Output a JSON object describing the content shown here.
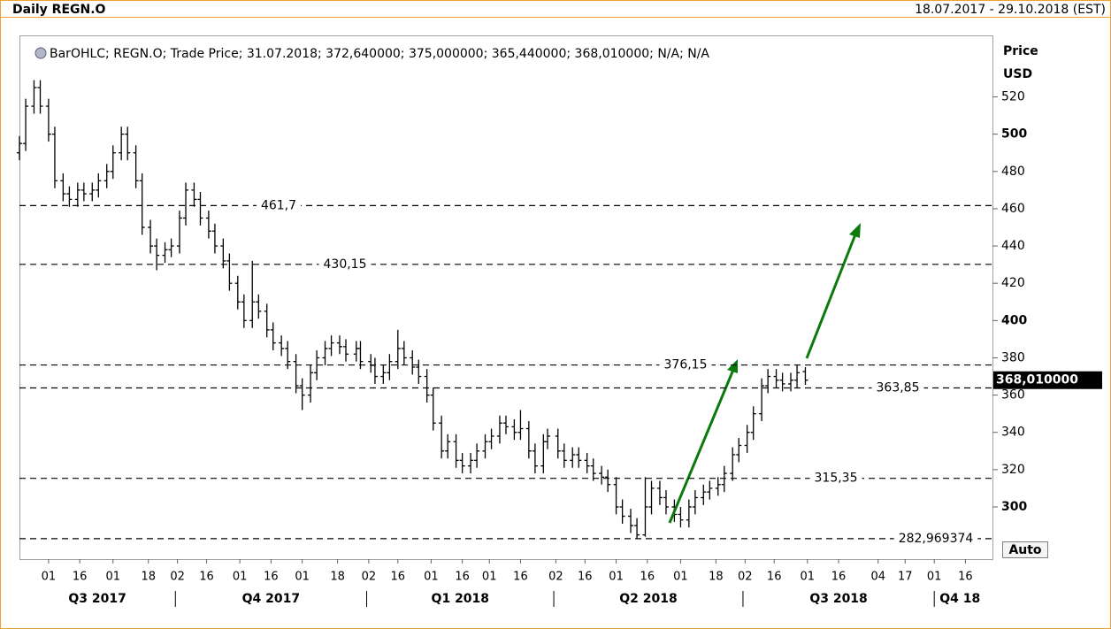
{
  "chart_data": {
    "type": "ohlc",
    "title": "Daily REGN.O",
    "range_label": "18.07.2017 - 29.10.2018 (EST)",
    "legend": "BarOHLC; REGN.O; Trade Price; 31.07.2018; 372,640000; 375,000000; 365,440000; 368,010000; N/A; N/A",
    "y_label": "Price",
    "y_unit": "USD",
    "auto_label": "Auto",
    "color": "#000000",
    "xlim": [
      "2017-07-18",
      "2018-10-29"
    ],
    "ylim": [
      272,
      553
    ],
    "yticks": [
      300,
      320,
      340,
      360,
      380,
      400,
      420,
      440,
      460,
      480,
      500,
      520
    ],
    "xticks": [
      {
        "value": "2017-08-01",
        "label": "01"
      },
      {
        "value": "2017-08-16",
        "label": "16"
      },
      {
        "value": "2017-09-01",
        "label": "01"
      },
      {
        "value": "2017-09-18",
        "label": "18"
      },
      {
        "value": "2017-10-02",
        "label": "02"
      },
      {
        "value": "2017-10-16",
        "label": "16"
      },
      {
        "value": "2017-11-01",
        "label": "01"
      },
      {
        "value": "2017-11-16",
        "label": "16"
      },
      {
        "value": "2017-12-01",
        "label": "01"
      },
      {
        "value": "2017-12-18",
        "label": "18"
      },
      {
        "value": "2018-01-02",
        "label": "02"
      },
      {
        "value": "2018-01-16",
        "label": "16"
      },
      {
        "value": "2018-02-01",
        "label": "01"
      },
      {
        "value": "2018-02-16",
        "label": "16"
      },
      {
        "value": "2018-03-01",
        "label": "01"
      },
      {
        "value": "2018-03-16",
        "label": "16"
      },
      {
        "value": "2018-04-02",
        "label": "02"
      },
      {
        "value": "2018-04-16",
        "label": "16"
      },
      {
        "value": "2018-05-01",
        "label": "01"
      },
      {
        "value": "2018-05-16",
        "label": "16"
      },
      {
        "value": "2018-06-01",
        "label": "01"
      },
      {
        "value": "2018-06-18",
        "label": "18"
      },
      {
        "value": "2018-07-02",
        "label": "02"
      },
      {
        "value": "2018-07-16",
        "label": "16"
      },
      {
        "value": "2018-08-01",
        "label": "01"
      },
      {
        "value": "2018-08-16",
        "label": "16"
      },
      {
        "value": "2018-09-04",
        "label": "04"
      },
      {
        "value": "2018-09-17",
        "label": "17"
      },
      {
        "value": "2018-10-01",
        "label": "01"
      },
      {
        "value": "2018-10-16",
        "label": "16"
      }
    ],
    "quarters": [
      {
        "value": "2017-07-01",
        "label": "Q3 2017"
      },
      {
        "value": "2017-10-01",
        "label": "Q4 2017"
      },
      {
        "value": "2018-01-01",
        "label": "Q1 2018"
      },
      {
        "value": "2018-04-01",
        "label": "Q2 2018"
      },
      {
        "value": "2018-07-01",
        "label": "Q3 2018"
      },
      {
        "value": "2018-10-01",
        "label": "Q4 18"
      }
    ],
    "levels": [
      {
        "value": 461.7,
        "label": "461,7"
      },
      {
        "value": 430.15,
        "label": "430,15"
      },
      {
        "value": 376.15,
        "label": "376,15"
      },
      {
        "value": 363.85,
        "label": "363,85"
      },
      {
        "value": 315.35,
        "label": "315,35"
      },
      {
        "value": 282.969374,
        "label": "282,969374"
      }
    ],
    "last_price": {
      "value": 368.01,
      "label": "368,010000"
    },
    "x": [
      "2017-07-18",
      "2017-07-21",
      "2017-07-25",
      "2017-07-28",
      "2017-08-01",
      "2017-08-04",
      "2017-08-08",
      "2017-08-11",
      "2017-08-15",
      "2017-08-18",
      "2017-08-22",
      "2017-08-25",
      "2017-08-29",
      "2017-09-01",
      "2017-09-05",
      "2017-09-08",
      "2017-09-12",
      "2017-09-15",
      "2017-09-19",
      "2017-09-22",
      "2017-09-26",
      "2017-09-29",
      "2017-10-03",
      "2017-10-06",
      "2017-10-10",
      "2017-10-13",
      "2017-10-17",
      "2017-10-20",
      "2017-10-24",
      "2017-10-27",
      "2017-10-31",
      "2017-11-03",
      "2017-11-07",
      "2017-11-10",
      "2017-11-14",
      "2017-11-17",
      "2017-11-21",
      "2017-11-24",
      "2017-11-28",
      "2017-12-01",
      "2017-12-05",
      "2017-12-08",
      "2017-12-12",
      "2017-12-15",
      "2017-12-19",
      "2017-12-22",
      "2017-12-27",
      "2017-12-29",
      "2018-01-03",
      "2018-01-05",
      "2018-01-09",
      "2018-01-12",
      "2018-01-16",
      "2018-01-19",
      "2018-01-23",
      "2018-01-26",
      "2018-01-30",
      "2018-02-02",
      "2018-02-06",
      "2018-02-09",
      "2018-02-13",
      "2018-02-16",
      "2018-02-20",
      "2018-02-23",
      "2018-02-27",
      "2018-03-02",
      "2018-03-06",
      "2018-03-09",
      "2018-03-13",
      "2018-03-16",
      "2018-03-20",
      "2018-03-23",
      "2018-03-27",
      "2018-03-29",
      "2018-04-03",
      "2018-04-06",
      "2018-04-10",
      "2018-04-13",
      "2018-04-17",
      "2018-04-20",
      "2018-04-24",
      "2018-04-27",
      "2018-05-01",
      "2018-05-04",
      "2018-05-08",
      "2018-05-11",
      "2018-05-15",
      "2018-05-18",
      "2018-05-22",
      "2018-05-25",
      "2018-05-29",
      "2018-06-01",
      "2018-06-05",
      "2018-06-08",
      "2018-06-12",
      "2018-06-15",
      "2018-06-19",
      "2018-06-22",
      "2018-06-26",
      "2018-06-29",
      "2018-07-03",
      "2018-07-06",
      "2018-07-10",
      "2018-07-13",
      "2018-07-17",
      "2018-07-20",
      "2018-07-24",
      "2018-07-27",
      "2018-07-31"
    ],
    "open": [
      490,
      495,
      515,
      525,
      515,
      500,
      475,
      468,
      465,
      470,
      468,
      470,
      475,
      480,
      490,
      500,
      490,
      475,
      450,
      440,
      435,
      438,
      440,
      455,
      470,
      465,
      455,
      448,
      440,
      432,
      420,
      410,
      400,
      410,
      405,
      395,
      388,
      385,
      378,
      365,
      360,
      372,
      380,
      385,
      388,
      386,
      382,
      385,
      378,
      376,
      370,
      372,
      378,
      385,
      380,
      375,
      370,
      360,
      345,
      330,
      335,
      325,
      322,
      325,
      330,
      335,
      338,
      345,
      343,
      340,
      342,
      330,
      322,
      335,
      338,
      330,
      325,
      328,
      325,
      322,
      318,
      316,
      312,
      300,
      295,
      290,
      285,
      300,
      310,
      305,
      300,
      296,
      293,
      300,
      305,
      308,
      310,
      312,
      318,
      328,
      333,
      340,
      350,
      365,
      370,
      368,
      366,
      368,
      372.64
    ],
    "high": [
      499,
      519,
      529,
      529,
      519,
      504,
      479,
      472,
      474,
      474,
      474,
      479,
      484,
      494,
      504,
      504,
      494,
      479,
      454,
      444,
      442,
      444,
      459,
      474,
      474,
      469,
      459,
      452,
      444,
      436,
      424,
      414,
      432,
      414,
      409,
      399,
      392,
      389,
      382,
      369,
      376,
      384,
      389,
      392,
      392,
      390,
      389,
      389,
      382,
      380,
      376,
      382,
      395,
      389,
      384,
      379,
      374,
      364,
      349,
      339,
      339,
      329,
      329,
      334,
      339,
      342,
      349,
      349,
      347,
      352,
      346,
      334,
      339,
      342,
      342,
      334,
      332,
      332,
      329,
      326,
      322,
      320,
      316,
      304,
      299,
      294,
      316,
      314,
      314,
      309,
      304,
      300,
      304,
      309,
      312,
      314,
      316,
      322,
      332,
      337,
      344,
      354,
      369,
      374,
      374,
      372,
      372,
      376,
      375
    ],
    "low": [
      486,
      491,
      511,
      511,
      496,
      471,
      464,
      461,
      461,
      464,
      464,
      466,
      471,
      476,
      486,
      486,
      471,
      446,
      436,
      427,
      431,
      434,
      436,
      451,
      461,
      451,
      444,
      436,
      428,
      416,
      406,
      396,
      396,
      401,
      391,
      384,
      381,
      374,
      361,
      352,
      356,
      368,
      376,
      381,
      382,
      378,
      378,
      374,
      372,
      366,
      366,
      368,
      374,
      376,
      371,
      366,
      356,
      341,
      326,
      326,
      321,
      318,
      318,
      321,
      326,
      331,
      334,
      339,
      336,
      336,
      326,
      318,
      318,
      331,
      326,
      321,
      321,
      321,
      318,
      314,
      312,
      308,
      296,
      291,
      286,
      282.97,
      284,
      296,
      301,
      296,
      292,
      289,
      289,
      296,
      301,
      304,
      306,
      308,
      314,
      324,
      329,
      336,
      346,
      361,
      364,
      362,
      362,
      364,
      365.44
    ],
    "close": [
      495,
      515,
      525,
      515,
      500,
      475,
      468,
      465,
      470,
      468,
      470,
      475,
      480,
      490,
      500,
      490,
      475,
      450,
      440,
      435,
      438,
      440,
      455,
      470,
      465,
      455,
      448,
      440,
      432,
      420,
      410,
      400,
      410,
      405,
      395,
      388,
      385,
      378,
      365,
      360,
      372,
      380,
      385,
      388,
      386,
      382,
      385,
      378,
      376,
      370,
      372,
      378,
      385,
      380,
      375,
      370,
      360,
      345,
      330,
      335,
      325,
      322,
      325,
      330,
      335,
      338,
      345,
      343,
      340,
      342,
      330,
      322,
      335,
      338,
      330,
      325,
      328,
      325,
      322,
      318,
      316,
      312,
      300,
      295,
      290,
      285,
      300,
      310,
      305,
      300,
      296,
      293,
      300,
      305,
      308,
      310,
      312,
      318,
      328,
      333,
      340,
      350,
      365,
      370,
      368,
      366,
      368,
      372,
      368.01
    ]
  }
}
